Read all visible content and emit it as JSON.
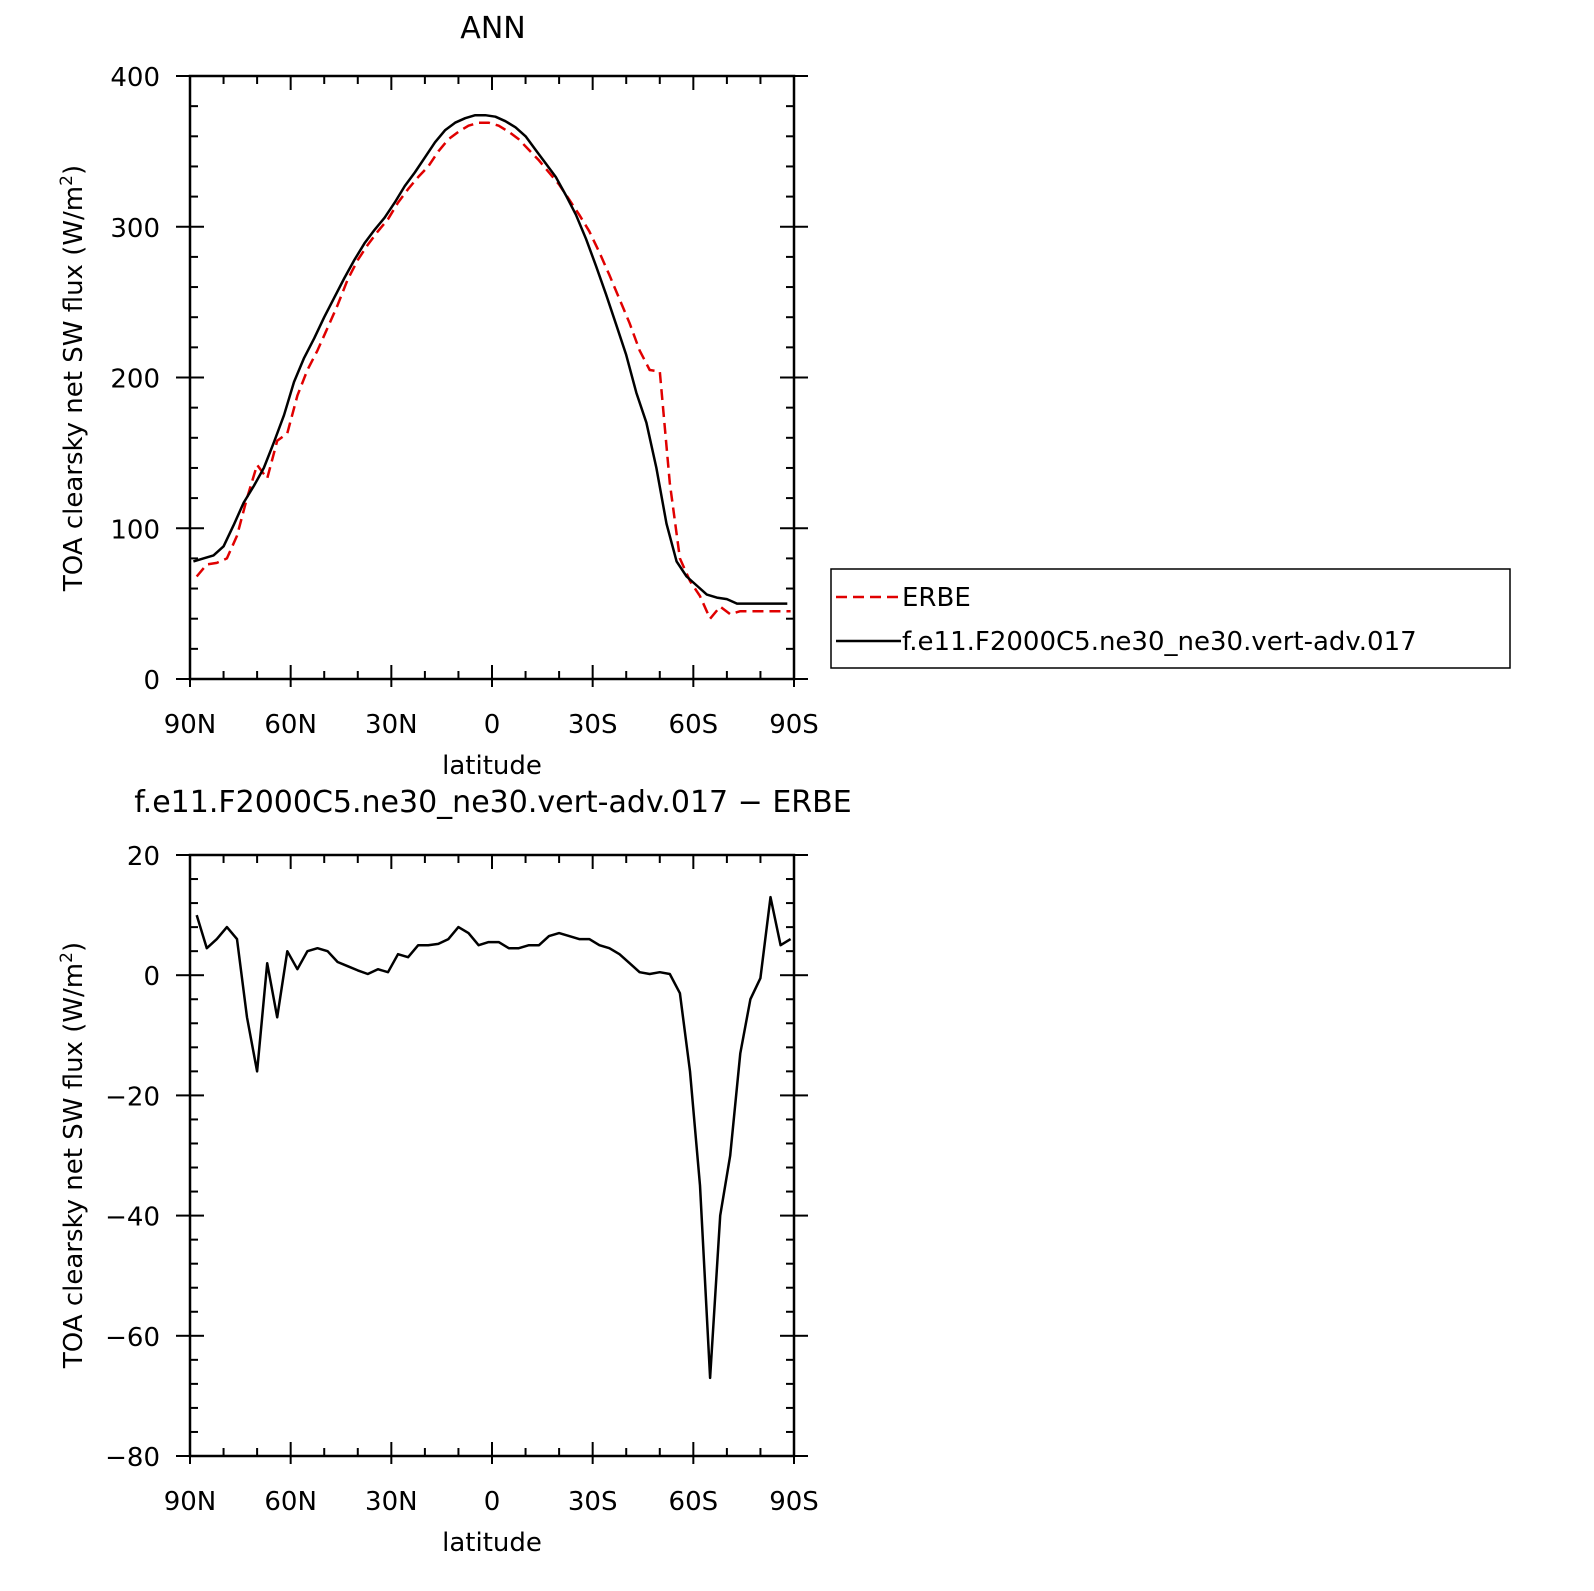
{
  "chart_data": [
    {
      "type": "line",
      "title": "ANN",
      "xlabel": "latitude",
      "ylabel": "TOA clearsky net SW flux (W/m²)",
      "ylabel_main": "TOA clearsky net SW flux (W/m",
      "ylabel_sup": "2",
      "ylabel_close": ")",
      "xlim": [
        -90,
        90
      ],
      "ylim": [
        0,
        400
      ],
      "xticks": [
        {
          "value": -90,
          "label": "90N"
        },
        {
          "value": -60,
          "label": "60N"
        },
        {
          "value": -30,
          "label": "30N"
        },
        {
          "value": 0,
          "label": "0"
        },
        {
          "value": 30,
          "label": "30S"
        },
        {
          "value": 60,
          "label": "60S"
        },
        {
          "value": 90,
          "label": "90S"
        }
      ],
      "yticks": [
        0,
        100,
        200,
        300,
        400
      ],
      "grid": false,
      "legend_placement": "right",
      "legend": [
        "ERBE",
        "f.e11.F2000C5.ne30_ne30.vert-adv.017"
      ],
      "series": [
        {
          "name": "ERBE",
          "color": "#e00000",
          "style": "dashed",
          "x": [
            -88,
            -85,
            -82,
            -79,
            -76,
            -73,
            -70,
            -67,
            -64,
            -61,
            -58,
            -55,
            -52,
            -49,
            -46,
            -43,
            -40,
            -37,
            -34,
            -31,
            -28,
            -25,
            -22,
            -19,
            -16,
            -13,
            -10,
            -7,
            -4,
            -1,
            2,
            5,
            8,
            11,
            14,
            17,
            20,
            23,
            26,
            29,
            32,
            35,
            38,
            41,
            44,
            47,
            50,
            53,
            56,
            59,
            62,
            65,
            68,
            71,
            74,
            77,
            80,
            83,
            86,
            89
          ],
          "values": [
            68,
            76,
            77,
            80,
            95,
            120,
            142,
            133,
            158,
            163,
            188,
            205,
            218,
            233,
            248,
            265,
            278,
            288,
            297,
            305,
            316,
            325,
            333,
            340,
            350,
            358,
            363,
            367,
            369,
            369,
            367,
            363,
            358,
            351,
            344,
            336,
            328,
            318,
            308,
            297,
            283,
            268,
            252,
            236,
            218,
            205,
            204,
            130,
            80,
            65,
            55,
            40,
            48,
            43,
            45,
            45,
            45,
            45,
            45,
            45
          ]
        },
        {
          "name": "f.e11.F2000C5.ne30_ne30.vert-adv.017",
          "color": "#000000",
          "style": "solid",
          "x": [
            -89,
            -86,
            -83,
            -80,
            -77,
            -74,
            -71,
            -68,
            -65,
            -62,
            -59,
            -56,
            -53,
            -50,
            -47,
            -44,
            -41,
            -38,
            -35,
            -32,
            -29,
            -26,
            -23,
            -20,
            -17,
            -14,
            -11,
            -8,
            -5,
            -2,
            1,
            4,
            7,
            10,
            13,
            16,
            19,
            22,
            25,
            28,
            31,
            34,
            37,
            40,
            43,
            46,
            49,
            52,
            55,
            58,
            61,
            64,
            67,
            70,
            73,
            76,
            79,
            82,
            85,
            88
          ],
          "values": [
            78,
            80,
            82,
            88,
            102,
            117,
            128,
            140,
            157,
            175,
            197,
            213,
            226,
            240,
            253,
            266,
            278,
            289,
            298,
            306,
            316,
            327,
            336,
            346,
            356,
            364,
            369,
            372,
            374,
            374,
            373,
            370,
            366,
            360,
            351,
            342,
            333,
            321,
            308,
            292,
            274,
            255,
            235,
            215,
            190,
            170,
            140,
            103,
            78,
            68,
            62,
            56,
            54,
            53,
            50,
            50,
            50,
            50,
            50,
            50
          ]
        }
      ]
    },
    {
      "type": "line",
      "title": "f.e11.F2000C5.ne30_ne30.vert-adv.017 − ERBE",
      "xlabel": "latitude",
      "ylabel": "TOA clearsky net SW flux (W/m²)",
      "ylabel_main": "TOA clearsky net SW flux (W/m",
      "ylabel_sup": "2",
      "ylabel_close": ")",
      "xlim": [
        -90,
        90
      ],
      "ylim": [
        -80,
        20
      ],
      "xticks": [
        {
          "value": -90,
          "label": "90N"
        },
        {
          "value": -60,
          "label": "60N"
        },
        {
          "value": -30,
          "label": "30N"
        },
        {
          "value": 0,
          "label": "0"
        },
        {
          "value": 30,
          "label": "30S"
        },
        {
          "value": 60,
          "label": "60S"
        },
        {
          "value": 90,
          "label": "90S"
        }
      ],
      "yticks": [
        -80,
        -60,
        -40,
        -20,
        0,
        20
      ],
      "grid": false,
      "series": [
        {
          "color": "#000000",
          "style": "solid",
          "x": [
            -88,
            -85,
            -82,
            -79,
            -76,
            -73,
            -70,
            -67,
            -64,
            -61,
            -58,
            -55,
            -52,
            -49,
            -46,
            -43,
            -40,
            -37,
            -34,
            -31,
            -28,
            -25,
            -22,
            -19,
            -16,
            -13,
            -10,
            -7,
            -4,
            -1,
            2,
            5,
            8,
            11,
            14,
            17,
            20,
            23,
            26,
            29,
            32,
            35,
            38,
            41,
            44,
            47,
            50,
            53,
            56,
            59,
            62,
            65,
            68,
            71,
            74,
            77,
            80,
            83,
            86,
            89
          ],
          "values": [
            10,
            4.5,
            6,
            8,
            6,
            -7,
            -16,
            2,
            -7,
            4,
            1,
            4,
            4.5,
            4,
            2.2,
            1.5,
            0.8,
            0.2,
            1,
            0.5,
            3.5,
            3,
            5,
            5,
            5.2,
            6,
            8,
            7,
            5,
            5.5,
            5.5,
            4.5,
            4.5,
            5,
            5,
            6.5,
            7,
            6.5,
            6,
            6,
            5,
            4.5,
            3.5,
            2,
            0.5,
            0.2,
            0.5,
            0.2,
            -3,
            -16,
            -35,
            -67,
            -40,
            -30,
            -13,
            -4,
            -0.5,
            13,
            5,
            6
          ]
        }
      ]
    }
  ]
}
